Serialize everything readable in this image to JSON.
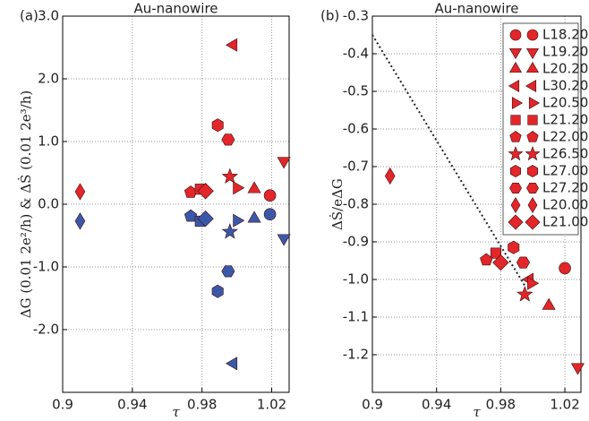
{
  "chart_data": [
    {
      "type": "scatter",
      "panel_label": "(a)",
      "title": "Au-nanowire",
      "xlabel": "τ",
      "ylabel": "ΔG (0.01 2e²/h) & ΔṠ (0.01 2e³/h)",
      "xlim": [
        0.9,
        1.03
      ],
      "ylim": [
        -3,
        3
      ],
      "xticks": [
        0.9,
        0.94,
        0.98,
        1.02
      ],
      "yticks": [
        {
          "value": 3,
          "label": "3.0"
        },
        {
          "value": 2,
          "label": "2.0"
        },
        {
          "value": 1,
          "label": "1.0"
        },
        {
          "value": 0,
          "label": "0.0"
        },
        {
          "value": -1,
          "label": "-1.0"
        },
        {
          "value": -2,
          "label": "-2.0"
        }
      ],
      "grid": true,
      "series": [
        {
          "color": "#e2262a",
          "markers": [
            "thin_diamond",
            "pentagon",
            "square",
            "diamond",
            "hexagon",
            "hexagon2",
            "star",
            "triangle_left",
            "triangle_right",
            "triangle_up",
            "circle",
            "triangle_down"
          ],
          "x": [
            0.91,
            0.9735,
            0.979,
            0.982,
            0.989,
            0.995,
            0.996,
            0.998,
            1.0,
            1.01,
            1.019,
            1.027
          ],
          "values": [
            0.2,
            0.19,
            0.24,
            0.21,
            1.26,
            1.03,
            0.44,
            2.54,
            0.26,
            0.24,
            0.14,
            0.69
          ]
        },
        {
          "color": "#3b58a8",
          "markers": [
            "thin_diamond",
            "pentagon",
            "square",
            "diamond",
            "hexagon",
            "hexagon2",
            "star",
            "triangle_left",
            "triangle_right",
            "triangle_up",
            "circle",
            "triangle_down"
          ],
          "x": [
            0.91,
            0.9735,
            0.979,
            0.982,
            0.989,
            0.995,
            0.996,
            0.998,
            1.0,
            1.01,
            1.019,
            1.027
          ],
          "values": [
            -0.27,
            -0.19,
            -0.27,
            -0.23,
            -1.39,
            -1.07,
            -0.44,
            -2.54,
            -0.26,
            -0.23,
            -0.16,
            -0.54
          ]
        }
      ]
    },
    {
      "type": "scatter",
      "panel_label": "(b)",
      "title": "Au-nanowire",
      "xlabel": "τ",
      "ylabel": "ΔṠ/eΔG",
      "xlim": [
        0.9,
        1.03
      ],
      "ylim": [
        -1.3,
        -0.3
      ],
      "xticks": [
        0.9,
        0.94,
        0.98,
        1.02
      ],
      "yticks": [
        -0.3,
        -0.4,
        -0.5,
        -0.6,
        -0.7,
        -0.8,
        -0.9,
        {
          "value": -1,
          "label": "-1.0"
        },
        -1.1,
        -1.2
      ],
      "grid": true,
      "legend": "upper right",
      "series": [
        {
          "name": "L18.20",
          "color": "#e2262a",
          "marker": "circle",
          "x": [
            1.02
          ],
          "values": [
            -0.97
          ]
        },
        {
          "name": "L19.20",
          "color": "#e2262a",
          "marker": "triangle_down",
          "x": [
            1.028
          ],
          "values": [
            -1.233
          ]
        },
        {
          "name": "L20.20",
          "color": "#e2262a",
          "marker": "triangle_up",
          "x": [
            1.01
          ],
          "values": [
            -1.07
          ]
        },
        {
          "name": "L30.20",
          "color": "#e2262a",
          "marker": "triangle_left",
          "x": [
            0.998
          ],
          "values": [
            -1.0
          ]
        },
        {
          "name": "L20.50",
          "color": "#e2262a",
          "marker": "triangle_right",
          "x": [
            0.999
          ],
          "values": [
            -1.01
          ]
        },
        {
          "name": "L21.20",
          "color": "#e2262a",
          "marker": "square",
          "x": [
            0.977
          ],
          "values": [
            -0.93
          ]
        },
        {
          "name": "L22.00",
          "color": "#e2262a",
          "marker": "pentagon",
          "x": [
            0.971
          ],
          "values": [
            -0.948
          ]
        },
        {
          "name": "L26.50",
          "color": "#e2262a",
          "marker": "star",
          "x": [
            0.995
          ],
          "values": [
            -1.04
          ]
        },
        {
          "name": "L27.00",
          "color": "#e2262a",
          "marker": "hexagon",
          "x": [
            0.988
          ],
          "values": [
            -0.915
          ]
        },
        {
          "name": "L27.20",
          "color": "#e2262a",
          "marker": "hexagon2",
          "x": [
            0.994
          ],
          "values": [
            -0.955
          ]
        },
        {
          "name": "L20.00",
          "color": "#e2262a",
          "marker": "thin_diamond",
          "x": [
            0.911
          ],
          "values": [
            -0.725
          ]
        },
        {
          "name": "L21.00",
          "color": "#e2262a",
          "marker": "diamond",
          "x": [
            0.98
          ],
          "values": [
            -0.955
          ]
        }
      ],
      "lines": [
        {
          "style": "dotted",
          "color": "#222222",
          "x": [
            0.9,
            0.9955
          ],
          "values": [
            -0.35,
            -1.02
          ]
        }
      ]
    }
  ]
}
